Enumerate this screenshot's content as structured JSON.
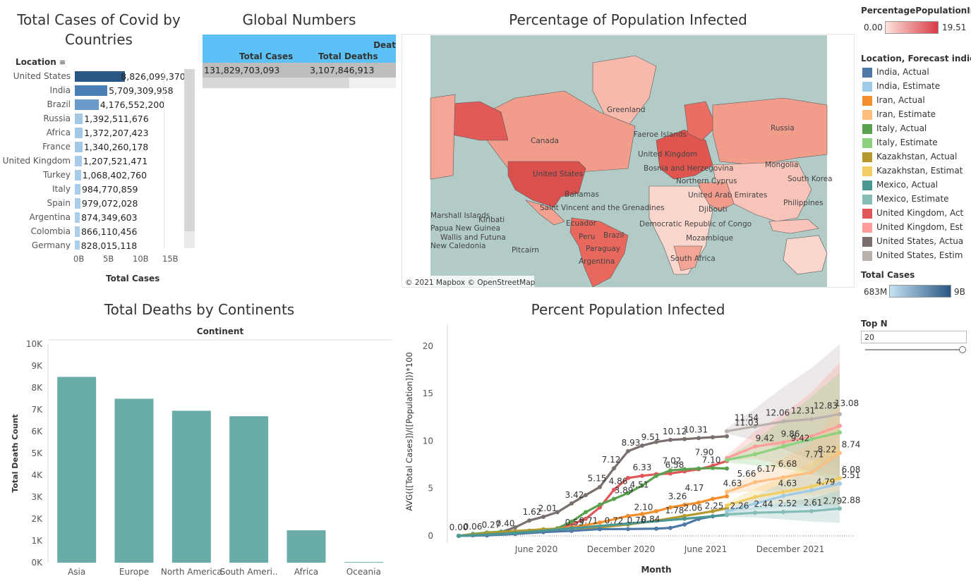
{
  "countries": {
    "title_line1": "Total Cases of Covid by",
    "title_line2": "Countries",
    "header": "Location",
    "axis_title": "Total Cases",
    "ticks": [
      "0B",
      "5B",
      "10B",
      "15B"
    ],
    "rows": [
      {
        "label": "United States",
        "value_text": "8,826,099,370",
        "value": 8826099370,
        "color": "#2a5783"
      },
      {
        "label": "India",
        "value_text": "5,709,309,958",
        "value": 5709309958,
        "color": "#4a7fb5"
      },
      {
        "label": "Brazil",
        "value_text": "4,176,552,200",
        "value": 4176552200,
        "color": "#6b9bcb"
      },
      {
        "label": "Russia",
        "value_text": "1,392,511,676",
        "value": 1392511676,
        "color": "#a3c8e6"
      },
      {
        "label": "Africa",
        "value_text": "1,372,207,423",
        "value": 1372207423,
        "color": "#a3c8e6"
      },
      {
        "label": "France",
        "value_text": "1,340,260,178",
        "value": 1340260178,
        "color": "#a3c8e6"
      },
      {
        "label": "United Kingdom",
        "value_text": "1,207,521,471",
        "value": 1207521471,
        "color": "#a7cbe8"
      },
      {
        "label": "Turkey",
        "value_text": "1,068,402,760",
        "value": 1068402760,
        "color": "#a7cbe8"
      },
      {
        "label": "Italy",
        "value_text": "984,770,859",
        "value": 984770859,
        "color": "#a9cdea"
      },
      {
        "label": "Spain",
        "value_text": "979,072,028",
        "value": 979072028,
        "color": "#a9cdea"
      },
      {
        "label": "Argentina",
        "value_text": "874,349,603",
        "value": 874349603,
        "color": "#abcfeb"
      },
      {
        "label": "Colombia",
        "value_text": "866,110,456",
        "value": 866110456,
        "color": "#abcfeb"
      },
      {
        "label": "Germany",
        "value_text": "828,015,118",
        "value": 828015118,
        "color": "#abcfeb"
      }
    ]
  },
  "global": {
    "title": "Global Numbers",
    "header_extra": "Deat",
    "col1": "Total Cases",
    "col2": "Total Deaths",
    "val1": "131,829,703,093",
    "val2": "3,107,846,913"
  },
  "map": {
    "title": "Percentage of Population Infected",
    "attribution": "© 2021 Mapbox  © OpenStreetMap",
    "labels": [
      {
        "text": "Greenland"
      },
      {
        "text": "Canada"
      },
      {
        "text": "Faeroe Islands"
      },
      {
        "text": "United Kingdom"
      },
      {
        "text": "Russia"
      },
      {
        "text": "Mongolia"
      },
      {
        "text": "Bosnia and Herzegovina"
      },
      {
        "text": "United States"
      },
      {
        "text": "Northern Cyprus"
      },
      {
        "text": "South Korea"
      },
      {
        "text": "Bahamas"
      },
      {
        "text": "United Arab Emirates"
      },
      {
        "text": "Philippines"
      },
      {
        "text": "Marshall Islands"
      },
      {
        "text": "Saint Vincent and the Grenadines"
      },
      {
        "text": "Djibouti"
      },
      {
        "text": "Kiribati"
      },
      {
        "text": "Ecuador"
      },
      {
        "text": "Democratic Republic of Congo"
      },
      {
        "text": "Papua New Guinea"
      },
      {
        "text": "Wallis and Futuna"
      },
      {
        "text": "Peru"
      },
      {
        "text": "Brazil"
      },
      {
        "text": "Mozambique"
      },
      {
        "text": "New Caledonia"
      },
      {
        "text": "Pitcairn"
      },
      {
        "text": "Paraguay"
      },
      {
        "text": "Argentina"
      },
      {
        "text": "South Africa"
      }
    ]
  },
  "legend": {
    "pct_title": "PercentagePopulationInf...",
    "pct_min": "0.00",
    "pct_max": "19.51",
    "loc_title": "Location, Forecast indica...",
    "items": [
      {
        "label": "India, Actual",
        "color": "#4e79a7"
      },
      {
        "label": "India, Estimate",
        "color": "#a0cbe8"
      },
      {
        "label": "Iran, Actual",
        "color": "#f28e2b"
      },
      {
        "label": "Iran, Estimate",
        "color": "#ffbe7d"
      },
      {
        "label": "Italy, Actual",
        "color": "#59a14f"
      },
      {
        "label": "Italy, Estimate",
        "color": "#8cd17d"
      },
      {
        "label": "Kazakhstan, Actual",
        "color": "#b6992d"
      },
      {
        "label": "Kazakhstan, Estimat",
        "color": "#f1ce63"
      },
      {
        "label": "Mexico, Actual",
        "color": "#499894"
      },
      {
        "label": "Mexico, Estimate",
        "color": "#86bcb6"
      },
      {
        "label": "United Kingdom, Act",
        "color": "#e15759"
      },
      {
        "label": "United Kingdom, Est",
        "color": "#ff9d9a"
      },
      {
        "label": "United States, Actua",
        "color": "#79706e"
      },
      {
        "label": "United States, Estim",
        "color": "#bab0ac"
      }
    ],
    "cases_title": "Total Cases",
    "cases_min": "683M",
    "cases_max": "9B",
    "topn_title": "Top N",
    "topn_value": "20"
  },
  "chart_data": [
    {
      "type": "bar",
      "title": "Total Deaths by Continents",
      "header": "Continent",
      "ylabel": "Total Death Count",
      "categories": [
        "Asia",
        "Europe",
        "North America",
        "South Ameri..",
        "Africa",
        "Oceania"
      ],
      "values": [
        8500,
        7500,
        6950,
        6700,
        1480,
        30
      ],
      "ylim": [
        0,
        10000
      ],
      "yticks": [
        {
          "label": "0K",
          "value": 0
        },
        {
          "label": "1K",
          "value": 1000
        },
        {
          "label": "2K",
          "value": 2000
        },
        {
          "label": "3K",
          "value": 3000
        },
        {
          "label": "4K",
          "value": 4000
        },
        {
          "label": "5K",
          "value": 5000
        },
        {
          "label": "6K",
          "value": 6000
        },
        {
          "label": "7K",
          "value": 7000
        },
        {
          "label": "8K",
          "value": 8000
        },
        {
          "label": "9K",
          "value": 9000
        },
        {
          "label": "10K",
          "value": 10000
        }
      ],
      "color": "#6aada8"
    },
    {
      "type": "line",
      "title": "Percent Population Infected",
      "xlabel": "Month",
      "ylabel": "AVG(([Total Cases])/([Population]))*100",
      "ylim": [
        0,
        22
      ],
      "yticks": [
        0,
        5,
        10,
        15,
        20
      ],
      "xticks": [
        {
          "label": "June 2020",
          "value": 5.5
        },
        {
          "label": "December 2020",
          "value": 11.5
        },
        {
          "label": "June 2021",
          "value": 17.5
        },
        {
          "label": "December 2021",
          "value": 23.5
        }
      ],
      "xlim": [
        0,
        28
      ],
      "series": [
        {
          "name": "United States, Actual",
          "color": "#79706e",
          "x": [
            0,
            1,
            2,
            3,
            4,
            5,
            6,
            7,
            8,
            9,
            10,
            11,
            12,
            13,
            14,
            15,
            16,
            17,
            18,
            19
          ],
          "y": [
            0,
            0.06,
            0.27,
            0.4,
            0.9,
            1.62,
            2.01,
            2.5,
            3.42,
            4.3,
            5.15,
            7.12,
            8.93,
            9.51,
            9.9,
            10.12,
            10.2,
            10.31,
            10.4,
            10.5
          ]
        },
        {
          "name": "United States, Estimate",
          "color": "#bab0ac",
          "x": [
            19,
            21,
            23,
            25,
            27
          ],
          "y": [
            11.03,
            11.54,
            12.06,
            12.31,
            12.83
          ]
        },
        {
          "name": "United Kingdom, Actual",
          "color": "#e15759",
          "x": [
            0,
            2,
            4,
            6,
            7,
            8,
            9,
            10,
            11,
            12,
            13,
            14,
            15,
            16,
            17,
            18,
            19
          ],
          "y": [
            0,
            0.1,
            0.3,
            0.5,
            0.8,
            1.2,
            1.8,
            3,
            4.86,
            6.1,
            6.33,
            6.5,
            6.58,
            6.8,
            7.02,
            7.4,
            7.9
          ]
        },
        {
          "name": "United Kingdom, Estimate",
          "color": "#ff9d9a",
          "x": [
            19,
            21,
            23,
            25,
            27
          ],
          "y": [
            8.2,
            9.42,
            9.86,
            10.5,
            11.6
          ]
        },
        {
          "name": "Italy, Actual",
          "color": "#59a14f",
          "x": [
            0,
            1,
            2,
            3,
            4,
            5,
            6,
            7,
            8,
            9,
            10,
            11,
            12,
            13,
            14,
            15,
            16,
            17,
            18,
            19
          ],
          "y": [
            0,
            0.2,
            0.35,
            0.45,
            0.5,
            0.55,
            0.6,
            0.8,
            1.5,
            2.5,
            3.3,
            3.89,
            4.51,
            5.3,
            6.33,
            6.9,
            7.02,
            7.1,
            7.15,
            7.1
          ]
        },
        {
          "name": "Italy, Estimate",
          "color": "#8cd17d",
          "x": [
            19,
            21,
            23,
            25,
            27
          ],
          "y": [
            8.0,
            8.6,
            9.42,
            10.2,
            10.9
          ]
        },
        {
          "name": "Iran, Actual",
          "color": "#f28e2b",
          "x": [
            0,
            2,
            4,
            6,
            8,
            10,
            12,
            13,
            14,
            15,
            16,
            17,
            18,
            19
          ],
          "y": [
            0,
            0.2,
            0.4,
            0.6,
            0.9,
            1.4,
            2.1,
            2.3,
            2.6,
            3.0,
            3.26,
            3.5,
            3.9,
            4.17
          ]
        },
        {
          "name": "Iran, Estimate",
          "color": "#ffbe7d",
          "x": [
            19,
            21,
            23,
            25,
            27
          ],
          "y": [
            4.63,
            5.66,
            6.17,
            6.68,
            8.74
          ]
        },
        {
          "name": "Kazakhstan, Actual",
          "color": "#b6992d",
          "x": [
            0,
            2,
            4,
            6,
            8,
            10,
            12,
            14,
            16,
            18,
            19
          ],
          "y": [
            0,
            0.3,
            0.5,
            0.7,
            0.8,
            0.9,
            1.2,
            1.6,
            2.1,
            2.6,
            2.9
          ]
        },
        {
          "name": "Kazakhstan, Estimate",
          "color": "#f1ce63",
          "x": [
            19,
            21,
            23,
            25,
            27
          ],
          "y": [
            3.2,
            4.1,
            4.63,
            5.2,
            6.08
          ]
        },
        {
          "name": "India, Actual",
          "color": "#4e79a7",
          "x": [
            0,
            2,
            4,
            6,
            8,
            10,
            12,
            14,
            15,
            16,
            17,
            18,
            19
          ],
          "y": [
            0,
            0.05,
            0.2,
            0.4,
            0.53,
            0.71,
            0.72,
            0.76,
            0.84,
            1.2,
            1.78,
            2.06,
            2.25
          ]
        },
        {
          "name": "India, Estimate",
          "color": "#a0cbe8",
          "x": [
            19,
            21,
            23,
            25,
            27
          ],
          "y": [
            2.6,
            3.4,
            4.2,
            4.79,
            5.51
          ]
        },
        {
          "name": "Mexico, Actual",
          "color": "#499894",
          "x": [
            0,
            4,
            8,
            12,
            16,
            19
          ],
          "y": [
            0,
            0.3,
            0.8,
            1.3,
            1.8,
            2.2
          ]
        },
        {
          "name": "Mexico, Estimate",
          "color": "#86bcb6",
          "x": [
            19,
            21,
            23,
            25,
            27
          ],
          "y": [
            2.26,
            2.44,
            2.52,
            2.61,
            2.88
          ]
        }
      ],
      "labels": [
        {
          "text": "0.00",
          "x": 0,
          "y": 0
        },
        {
          "text": "0.06",
          "x": 1,
          "y": 0.06
        },
        {
          "text": "0.27",
          "x": 2.3,
          "y": 0.27
        },
        {
          "text": "0.40",
          "x": 3.3,
          "y": 0.4
        },
        {
          "text": "1.62",
          "x": 5.2,
          "y": 1.62
        },
        {
          "text": "2.01",
          "x": 6.3,
          "y": 2.01
        },
        {
          "text": "3.42",
          "x": 8.2,
          "y": 3.42
        },
        {
          "text": "5.15",
          "x": 9.8,
          "y": 5.15
        },
        {
          "text": "7.12",
          "x": 10.8,
          "y": 7.12
        },
        {
          "text": "8.93",
          "x": 12.2,
          "y": 8.93
        },
        {
          "text": "9.51",
          "x": 13.6,
          "y": 9.51
        },
        {
          "text": "10.12",
          "x": 15.3,
          "y": 10.12
        },
        {
          "text": "10.31",
          "x": 16.8,
          "y": 10.31
        },
        {
          "text": "4.86",
          "x": 11.3,
          "y": 4.86
        },
        {
          "text": "6.33",
          "x": 13.0,
          "y": 6.33
        },
        {
          "text": "7.02",
          "x": 15.1,
          "y": 7.02
        },
        {
          "text": "7.90",
          "x": 17.4,
          "y": 7.9
        },
        {
          "text": "4.51",
          "x": 12.8,
          "y": 4.51
        },
        {
          "text": "6.58",
          "x": 15.3,
          "y": 6.58
        },
        {
          "text": "7.10",
          "x": 17.9,
          "y": 7.1
        },
        {
          "text": "3.89",
          "x": 11.7,
          "y": 3.89
        },
        {
          "text": "2.10",
          "x": 13.1,
          "y": 2.1
        },
        {
          "text": "3.26",
          "x": 15.5,
          "y": 3.26
        },
        {
          "text": "4.17",
          "x": 16.7,
          "y": 4.17
        },
        {
          "text": "4.63",
          "x": 19.4,
          "y": 4.63
        },
        {
          "text": "0.53",
          "x": 8.2,
          "y": 0.53
        },
        {
          "text": "0.71",
          "x": 9.2,
          "y": 0.71
        },
        {
          "text": "0.72",
          "x": 11.0,
          "y": 0.72
        },
        {
          "text": "0.76",
          "x": 12.6,
          "y": 0.76
        },
        {
          "text": "0.84",
          "x": 13.6,
          "y": 0.84
        },
        {
          "text": "1.78",
          "x": 15.3,
          "y": 1.78
        },
        {
          "text": "2.06",
          "x": 16.6,
          "y": 2.06
        },
        {
          "text": "2.25",
          "x": 18.1,
          "y": 2.25
        },
        {
          "text": "11.54",
          "x": 20.4,
          "y": 11.54
        },
        {
          "text": "12.06",
          "x": 22.6,
          "y": 12.06
        },
        {
          "text": "12.31",
          "x": 24.4,
          "y": 12.31
        },
        {
          "text": "12.83",
          "x": 26.0,
          "y": 12.83
        },
        {
          "text": "13.08",
          "x": 27.5,
          "y": 13.08
        },
        {
          "text": "11.03",
          "x": 20.4,
          "y": 11.03
        },
        {
          "text": "9.42",
          "x": 21.7,
          "y": 9.42
        },
        {
          "text": "9.86",
          "x": 23.5,
          "y": 9.86
        },
        {
          "text": "5.66",
          "x": 20.4,
          "y": 5.66
        },
        {
          "text": "6.17",
          "x": 21.8,
          "y": 6.17
        },
        {
          "text": "6.68",
          "x": 23.3,
          "y": 6.68
        },
        {
          "text": "9.42",
          "x": 24.2,
          "y": 9.42
        },
        {
          "text": "8.22",
          "x": 26.1,
          "y": 8.22
        },
        {
          "text": "8.74",
          "x": 27.8,
          "y": 8.74
        },
        {
          "text": "4.63",
          "x": 23.3,
          "y": 4.63
        },
        {
          "text": "7.71",
          "x": 25.2,
          "y": 7.71
        },
        {
          "text": "6.08",
          "x": 27.8,
          "y": 6.08
        },
        {
          "text": "4.79",
          "x": 26.0,
          "y": 4.79
        },
        {
          "text": "5.51",
          "x": 27.8,
          "y": 5.51
        },
        {
          "text": "2.26",
          "x": 19.9,
          "y": 2.26
        },
        {
          "text": "2.44",
          "x": 21.6,
          "y": 2.44
        },
        {
          "text": "2.52",
          "x": 23.3,
          "y": 2.52
        },
        {
          "text": "2.61",
          "x": 25.1,
          "y": 2.61
        },
        {
          "text": "2.79",
          "x": 26.5,
          "y": 2.79
        },
        {
          "text": "2.88",
          "x": 27.8,
          "y": 2.88
        }
      ]
    }
  ]
}
